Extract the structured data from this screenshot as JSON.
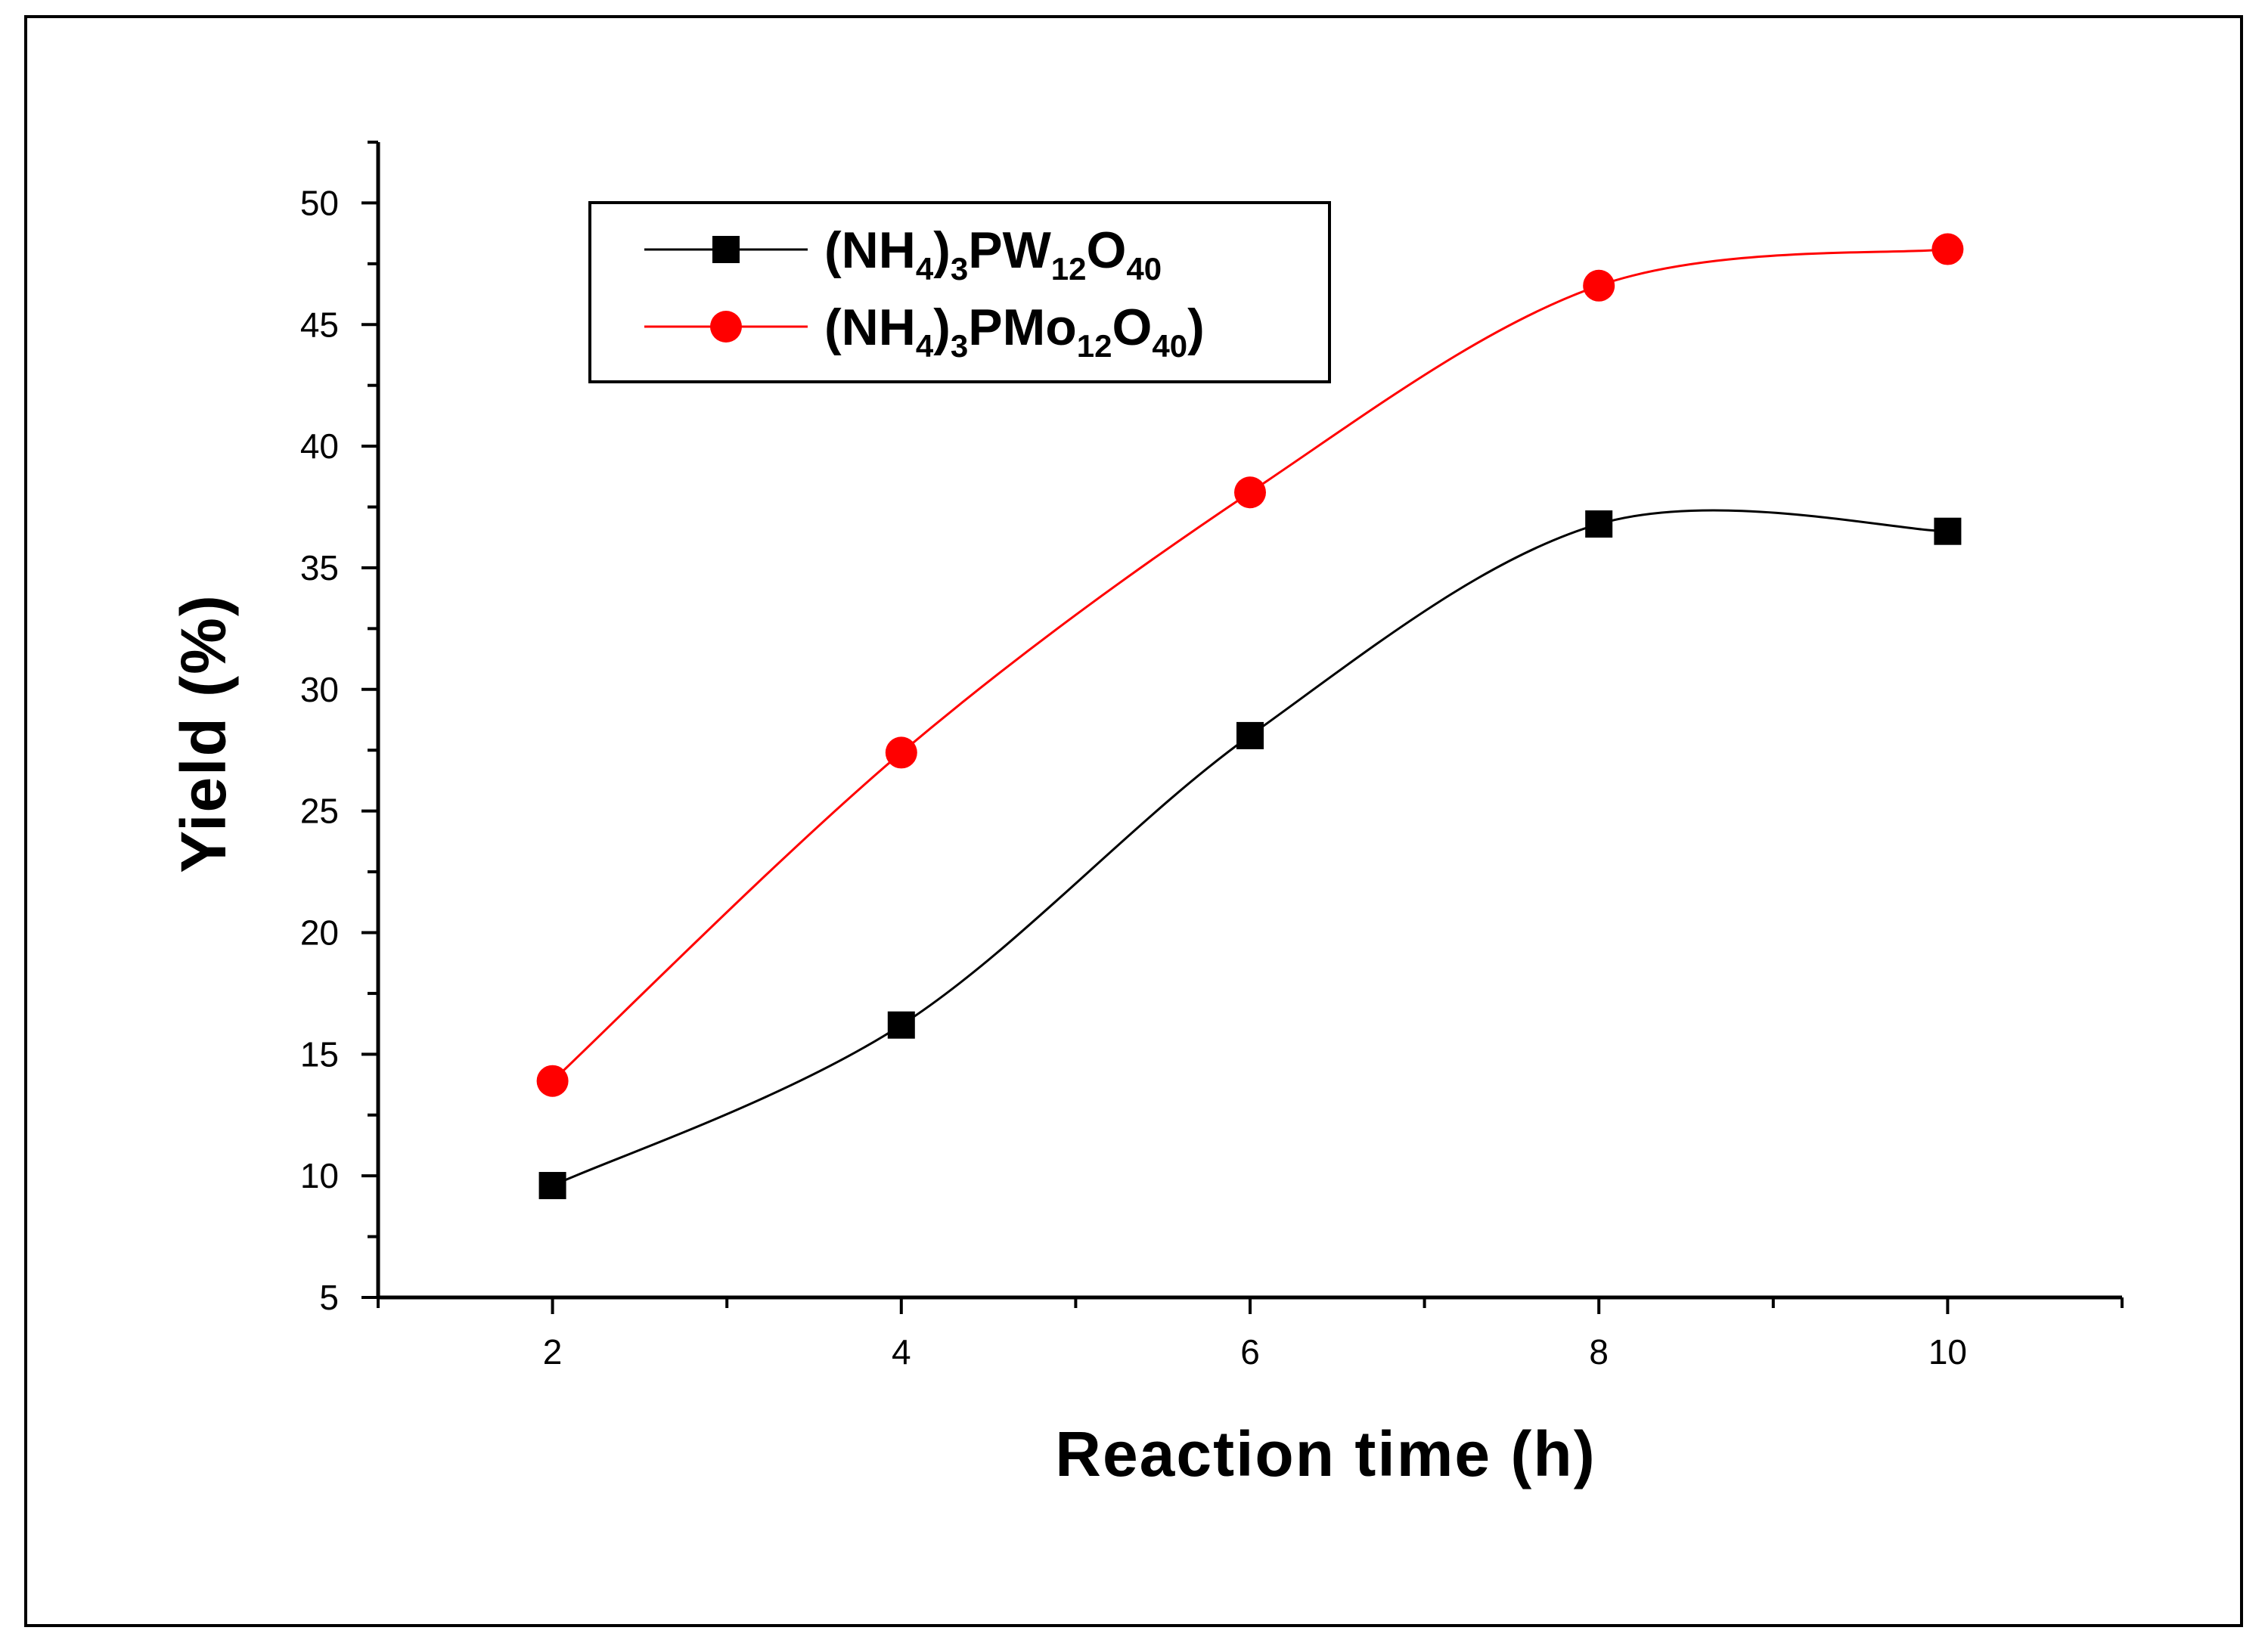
{
  "chart_data": {
    "type": "line",
    "title": "",
    "xlabel": "Reaction time (h)",
    "ylabel": "Yield (%)",
    "xlim": [
      1,
      11
    ],
    "ylim": [
      5,
      52.5
    ],
    "x_ticks": [
      2,
      4,
      6,
      8,
      10
    ],
    "y_ticks": [
      5,
      10,
      15,
      20,
      25,
      30,
      35,
      40,
      45,
      50
    ],
    "x_tick_labels": [
      "2",
      "4",
      "6",
      "8",
      "10"
    ],
    "y_tick_labels": [
      "5",
      "10",
      "15",
      "20",
      "25",
      "30",
      "35",
      "40",
      "45",
      "50"
    ],
    "x": [
      2,
      4,
      6,
      8,
      10
    ],
    "legend_position": "top-left",
    "series": [
      {
        "name": "(NH4)3PW12O40",
        "legend_parts": [
          "(NH",
          "4",
          ")",
          "3",
          "PW",
          "12",
          "O",
          "40"
        ],
        "color": "#000000",
        "marker": "square",
        "values": [
          9.6,
          16.2,
          28.1,
          36.8,
          36.5
        ]
      },
      {
        "name": "(NH4)3PMo12O40)",
        "legend_parts": [
          "(NH",
          "4",
          ")",
          "3",
          "PMo",
          "12",
          "O",
          "40",
          ")"
        ],
        "color": "#ff0000",
        "marker": "circle",
        "values": [
          13.9,
          27.4,
          38.1,
          46.6,
          48.1
        ]
      }
    ]
  }
}
